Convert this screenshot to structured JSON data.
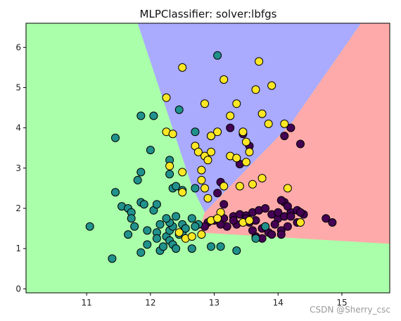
{
  "chart_data": {
    "type": "scatter",
    "title": "MLPClassifier: solver:lbfgs",
    "xlabel": "",
    "ylabel": "",
    "xlim": [
      10.05,
      15.75
    ],
    "ylim": [
      -0.1,
      6.6
    ],
    "x_ticks": [
      11,
      12,
      13,
      14,
      15
    ],
    "y_ticks": [
      0,
      1,
      2,
      3,
      4,
      5,
      6
    ],
    "grid": false,
    "legend": "none",
    "region_colors": {
      "green": "#aaffaa",
      "blue": "#aaaaff",
      "red": "#ffaaaa"
    },
    "decision_regions": [
      {
        "class": "blue",
        "polygon": [
          [
            11.8,
            6.6
          ],
          [
            12.65,
            2.55
          ],
          [
            12.85,
            1.9
          ],
          [
            14.2,
            4.1
          ],
          [
            15.3,
            6.6
          ]
        ]
      },
      {
        "class": "red",
        "polygon": [
          [
            15.3,
            6.6
          ],
          [
            15.75,
            6.6
          ],
          [
            15.75,
            1.12
          ],
          [
            12.75,
            1.4
          ],
          [
            12.85,
            1.9
          ],
          [
            14.2,
            4.1
          ]
        ]
      }
    ],
    "series": [
      {
        "class": "purple",
        "color": "#440154",
        "points": [
          [
            12.95,
            3.8
          ],
          [
            13.25,
            4.0
          ],
          [
            13.45,
            3.85
          ],
          [
            13.55,
            3.55
          ],
          [
            13.4,
            3.1
          ],
          [
            13.1,
            2.65
          ],
          [
            13.05,
            2.38
          ],
          [
            13.15,
            2.1
          ],
          [
            12.9,
            1.65
          ],
          [
            12.85,
            1.55
          ],
          [
            13.0,
            1.7
          ],
          [
            13.15,
            1.75
          ],
          [
            13.3,
            1.8
          ],
          [
            13.4,
            1.85
          ],
          [
            13.5,
            1.82
          ],
          [
            13.6,
            1.9
          ],
          [
            13.7,
            1.95
          ],
          [
            13.8,
            2.0
          ],
          [
            13.9,
            1.85
          ],
          [
            14.0,
            1.75
          ],
          [
            14.1,
            1.8
          ],
          [
            14.2,
            1.9
          ],
          [
            14.3,
            1.95
          ],
          [
            14.4,
            1.85
          ],
          [
            13.2,
            1.55
          ],
          [
            13.35,
            1.6
          ],
          [
            13.55,
            1.65
          ],
          [
            13.65,
            1.7
          ],
          [
            13.75,
            1.5
          ],
          [
            13.85,
            1.4
          ],
          [
            13.95,
            1.6
          ],
          [
            14.05,
            1.45
          ],
          [
            14.15,
            1.55
          ],
          [
            14.1,
            2.15
          ],
          [
            14.05,
            2.2
          ],
          [
            14.15,
            2.05
          ],
          [
            14.1,
            3.8
          ],
          [
            14.2,
            4.0
          ],
          [
            14.35,
            3.6
          ],
          [
            14.75,
            1.75
          ],
          [
            14.85,
            1.65
          ],
          [
            13.65,
            1.3
          ],
          [
            13.75,
            1.25
          ],
          [
            14.05,
            1.35
          ],
          [
            14.3,
            1.65
          ],
          [
            13.3,
            1.7
          ],
          [
            13.5,
            1.75
          ],
          [
            14.2,
            1.8
          ],
          [
            13.8,
            1.55
          ],
          [
            14.0,
            1.9
          ],
          [
            13.6,
            1.45
          ],
          [
            13.9,
            1.35
          ],
          [
            13.1,
            1.6
          ],
          [
            14.35,
            1.9
          ]
        ]
      },
      {
        "class": "teal",
        "color": "#21918c",
        "points": [
          [
            11.05,
            1.55
          ],
          [
            11.4,
            0.75
          ],
          [
            11.45,
            2.4
          ],
          [
            11.45,
            3.75
          ],
          [
            11.55,
            2.05
          ],
          [
            11.65,
            2.0
          ],
          [
            11.7,
            1.9
          ],
          [
            11.7,
            1.75
          ],
          [
            11.65,
            1.35
          ],
          [
            11.75,
            1.55
          ],
          [
            11.8,
            2.7
          ],
          [
            11.85,
            2.9
          ],
          [
            11.85,
            2.15
          ],
          [
            11.9,
            2.1
          ],
          [
            11.85,
            0.9
          ],
          [
            11.95,
            1.45
          ],
          [
            11.95,
            1.1
          ],
          [
            12.0,
            3.45
          ],
          [
            12.05,
            1.95
          ],
          [
            12.1,
            2.1
          ],
          [
            12.1,
            1.4
          ],
          [
            12.1,
            1.25
          ],
          [
            12.15,
            1.6
          ],
          [
            12.15,
            0.95
          ],
          [
            12.2,
            1.05
          ],
          [
            12.25,
            1.3
          ],
          [
            12.3,
            1.45
          ],
          [
            12.35,
            1.55
          ],
          [
            12.3,
            1.65
          ],
          [
            12.25,
            1.75
          ],
          [
            12.4,
            1.8
          ],
          [
            12.3,
            1.2
          ],
          [
            12.35,
            1.1
          ],
          [
            12.4,
            1.0
          ],
          [
            12.45,
            1.35
          ],
          [
            12.5,
            1.4
          ],
          [
            12.5,
            1.6
          ],
          [
            12.55,
            1.5
          ],
          [
            12.3,
            2.85
          ],
          [
            12.35,
            2.5
          ],
          [
            12.4,
            2.55
          ],
          [
            12.5,
            2.45
          ],
          [
            12.3,
            3.2
          ],
          [
            12.45,
            4.45
          ],
          [
            11.85,
            4.3
          ],
          [
            12.05,
            4.3
          ],
          [
            12.7,
            3.9
          ],
          [
            12.7,
            2.5
          ],
          [
            12.75,
            1.6
          ],
          [
            12.65,
            1.75
          ],
          [
            12.7,
            1.55
          ],
          [
            12.65,
            1.0
          ],
          [
            12.95,
            1.05
          ],
          [
            13.05,
            5.8
          ],
          [
            13.1,
            1.05
          ],
          [
            13.35,
            0.95
          ],
          [
            13.65,
            1.25
          ],
          [
            13.8,
            1.55
          ]
        ]
      },
      {
        "class": "yellow",
        "color": "#fde725",
        "points": [
          [
            12.25,
            4.75
          ],
          [
            12.25,
            3.9
          ],
          [
            12.3,
            3.05
          ],
          [
            12.35,
            3.85
          ],
          [
            12.5,
            5.5
          ],
          [
            12.5,
            2.4
          ],
          [
            12.5,
            2.9
          ],
          [
            12.7,
            3.55
          ],
          [
            12.75,
            3.4
          ],
          [
            12.8,
            2.95
          ],
          [
            12.8,
            2.7
          ],
          [
            12.85,
            3.3
          ],
          [
            12.9,
            3.2
          ],
          [
            12.85,
            4.6
          ],
          [
            12.9,
            2.25
          ],
          [
            12.95,
            3.4
          ],
          [
            12.95,
            3.8
          ],
          [
            13.05,
            3.9
          ],
          [
            13.1,
            1.9
          ],
          [
            13.15,
            5.2
          ],
          [
            13.15,
            2.55
          ],
          [
            13.25,
            3.3
          ],
          [
            13.25,
            4.3
          ],
          [
            13.35,
            3.25
          ],
          [
            13.35,
            4.6
          ],
          [
            13.4,
            2.55
          ],
          [
            13.5,
            3.65
          ],
          [
            13.5,
            3.15
          ],
          [
            13.55,
            3.4
          ],
          [
            13.45,
            3.9
          ],
          [
            13.6,
            2.6
          ],
          [
            13.65,
            4.95
          ],
          [
            13.7,
            5.65
          ],
          [
            13.75,
            4.35
          ],
          [
            13.75,
            2.75
          ],
          [
            13.85,
            4.1
          ],
          [
            13.9,
            5.05
          ],
          [
            14.1,
            4.1
          ],
          [
            14.15,
            2.5
          ],
          [
            14.35,
            1.65
          ],
          [
            12.45,
            1.4
          ],
          [
            12.55,
            1.25
          ],
          [
            12.65,
            1.3
          ],
          [
            12.8,
            1.35
          ],
          [
            12.95,
            1.7
          ],
          [
            13.05,
            1.75
          ],
          [
            13.45,
            1.65
          ],
          [
            13.55,
            1.7
          ],
          [
            12.85,
            2.5
          ]
        ]
      }
    ]
  },
  "watermark": "CSDN @Sherry_csc"
}
